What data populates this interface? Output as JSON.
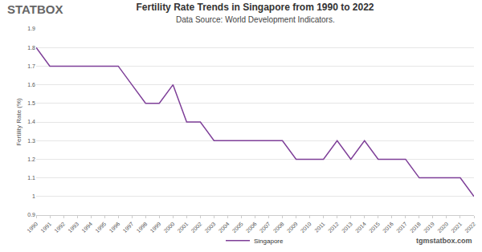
{
  "chart_data": {
    "type": "line",
    "title": "Fertility Rate Trends in Singapore from 1990 to 2022",
    "subtitle": "Data Source: World Development Indicators.",
    "y_label": "Fertility Rate (%)",
    "annotations": [
      "STATBOX",
      "tgmstatbox.com"
    ],
    "categories": [
      "1990",
      "1991",
      "1992",
      "1993",
      "1994",
      "1995",
      "1996",
      "1997",
      "1998",
      "1999",
      "2000",
      "2001",
      "2002",
      "2003",
      "2004",
      "2005",
      "2006",
      "2007",
      "2008",
      "2009",
      "2010",
      "2011",
      "2012",
      "2013",
      "2014",
      "2015",
      "2016",
      "2017",
      "2018",
      "2019",
      "2020",
      "2021",
      "2022"
    ],
    "series": [
      {
        "name": "Singapore",
        "color": "#7e3f98",
        "values": [
          1.8,
          1.7,
          1.7,
          1.7,
          1.7,
          1.7,
          1.7,
          1.6,
          1.5,
          1.5,
          1.6,
          1.4,
          1.4,
          1.3,
          1.3,
          1.3,
          1.3,
          1.3,
          1.3,
          1.2,
          1.2,
          1.2,
          1.3,
          1.2,
          1.3,
          1.2,
          1.2,
          1.2,
          1.1,
          1.1,
          1.1,
          1.1,
          1.0
        ]
      }
    ],
    "ylim": [
      0.9,
      1.9
    ],
    "yticks": [
      0.9,
      1,
      1.1,
      1.2,
      1.3,
      1.4,
      1.5,
      1.6,
      1.7,
      1.8,
      1.9
    ],
    "grid": true,
    "legend": "bottom"
  }
}
